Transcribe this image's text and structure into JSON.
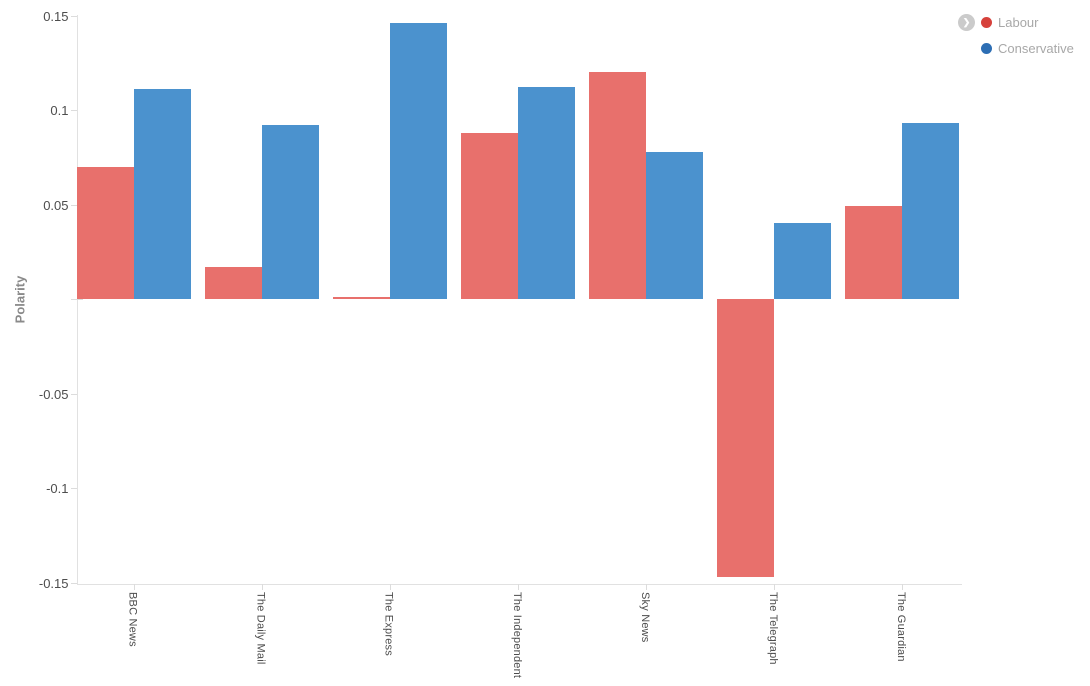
{
  "legend": {
    "toggle_glyph": "❯",
    "items": [
      {
        "label": "Labour",
        "swatch_color": "#d6413b"
      },
      {
        "label": "Conservative",
        "swatch_color": "#2d6eb4"
      }
    ]
  },
  "chart_data": {
    "type": "bar",
    "title": "",
    "xlabel": "",
    "ylabel": "Polarity",
    "categories": [
      "BBC News",
      "The Daily Mail",
      "The Express",
      "The Independent",
      "Sky News",
      "The Telegraph",
      "The Guardian"
    ],
    "series": [
      {
        "name": "Labour",
        "color": "#e8706c",
        "values": [
          0.07,
          0.017,
          0.001,
          0.088,
          0.12,
          -0.147,
          0.049
        ]
      },
      {
        "name": "Conservative",
        "color": "#4b92ce",
        "values": [
          0.111,
          0.092,
          0.146,
          0.112,
          0.078,
          0.04,
          0.093
        ]
      }
    ],
    "ylim": [
      -0.15,
      0.15
    ],
    "yticks": [
      0.15,
      0.1,
      0.05,
      -0.05,
      -0.1,
      -0.15
    ],
    "zero_tick_unlabeled": true,
    "grid": false,
    "legend_position": "top-right"
  }
}
